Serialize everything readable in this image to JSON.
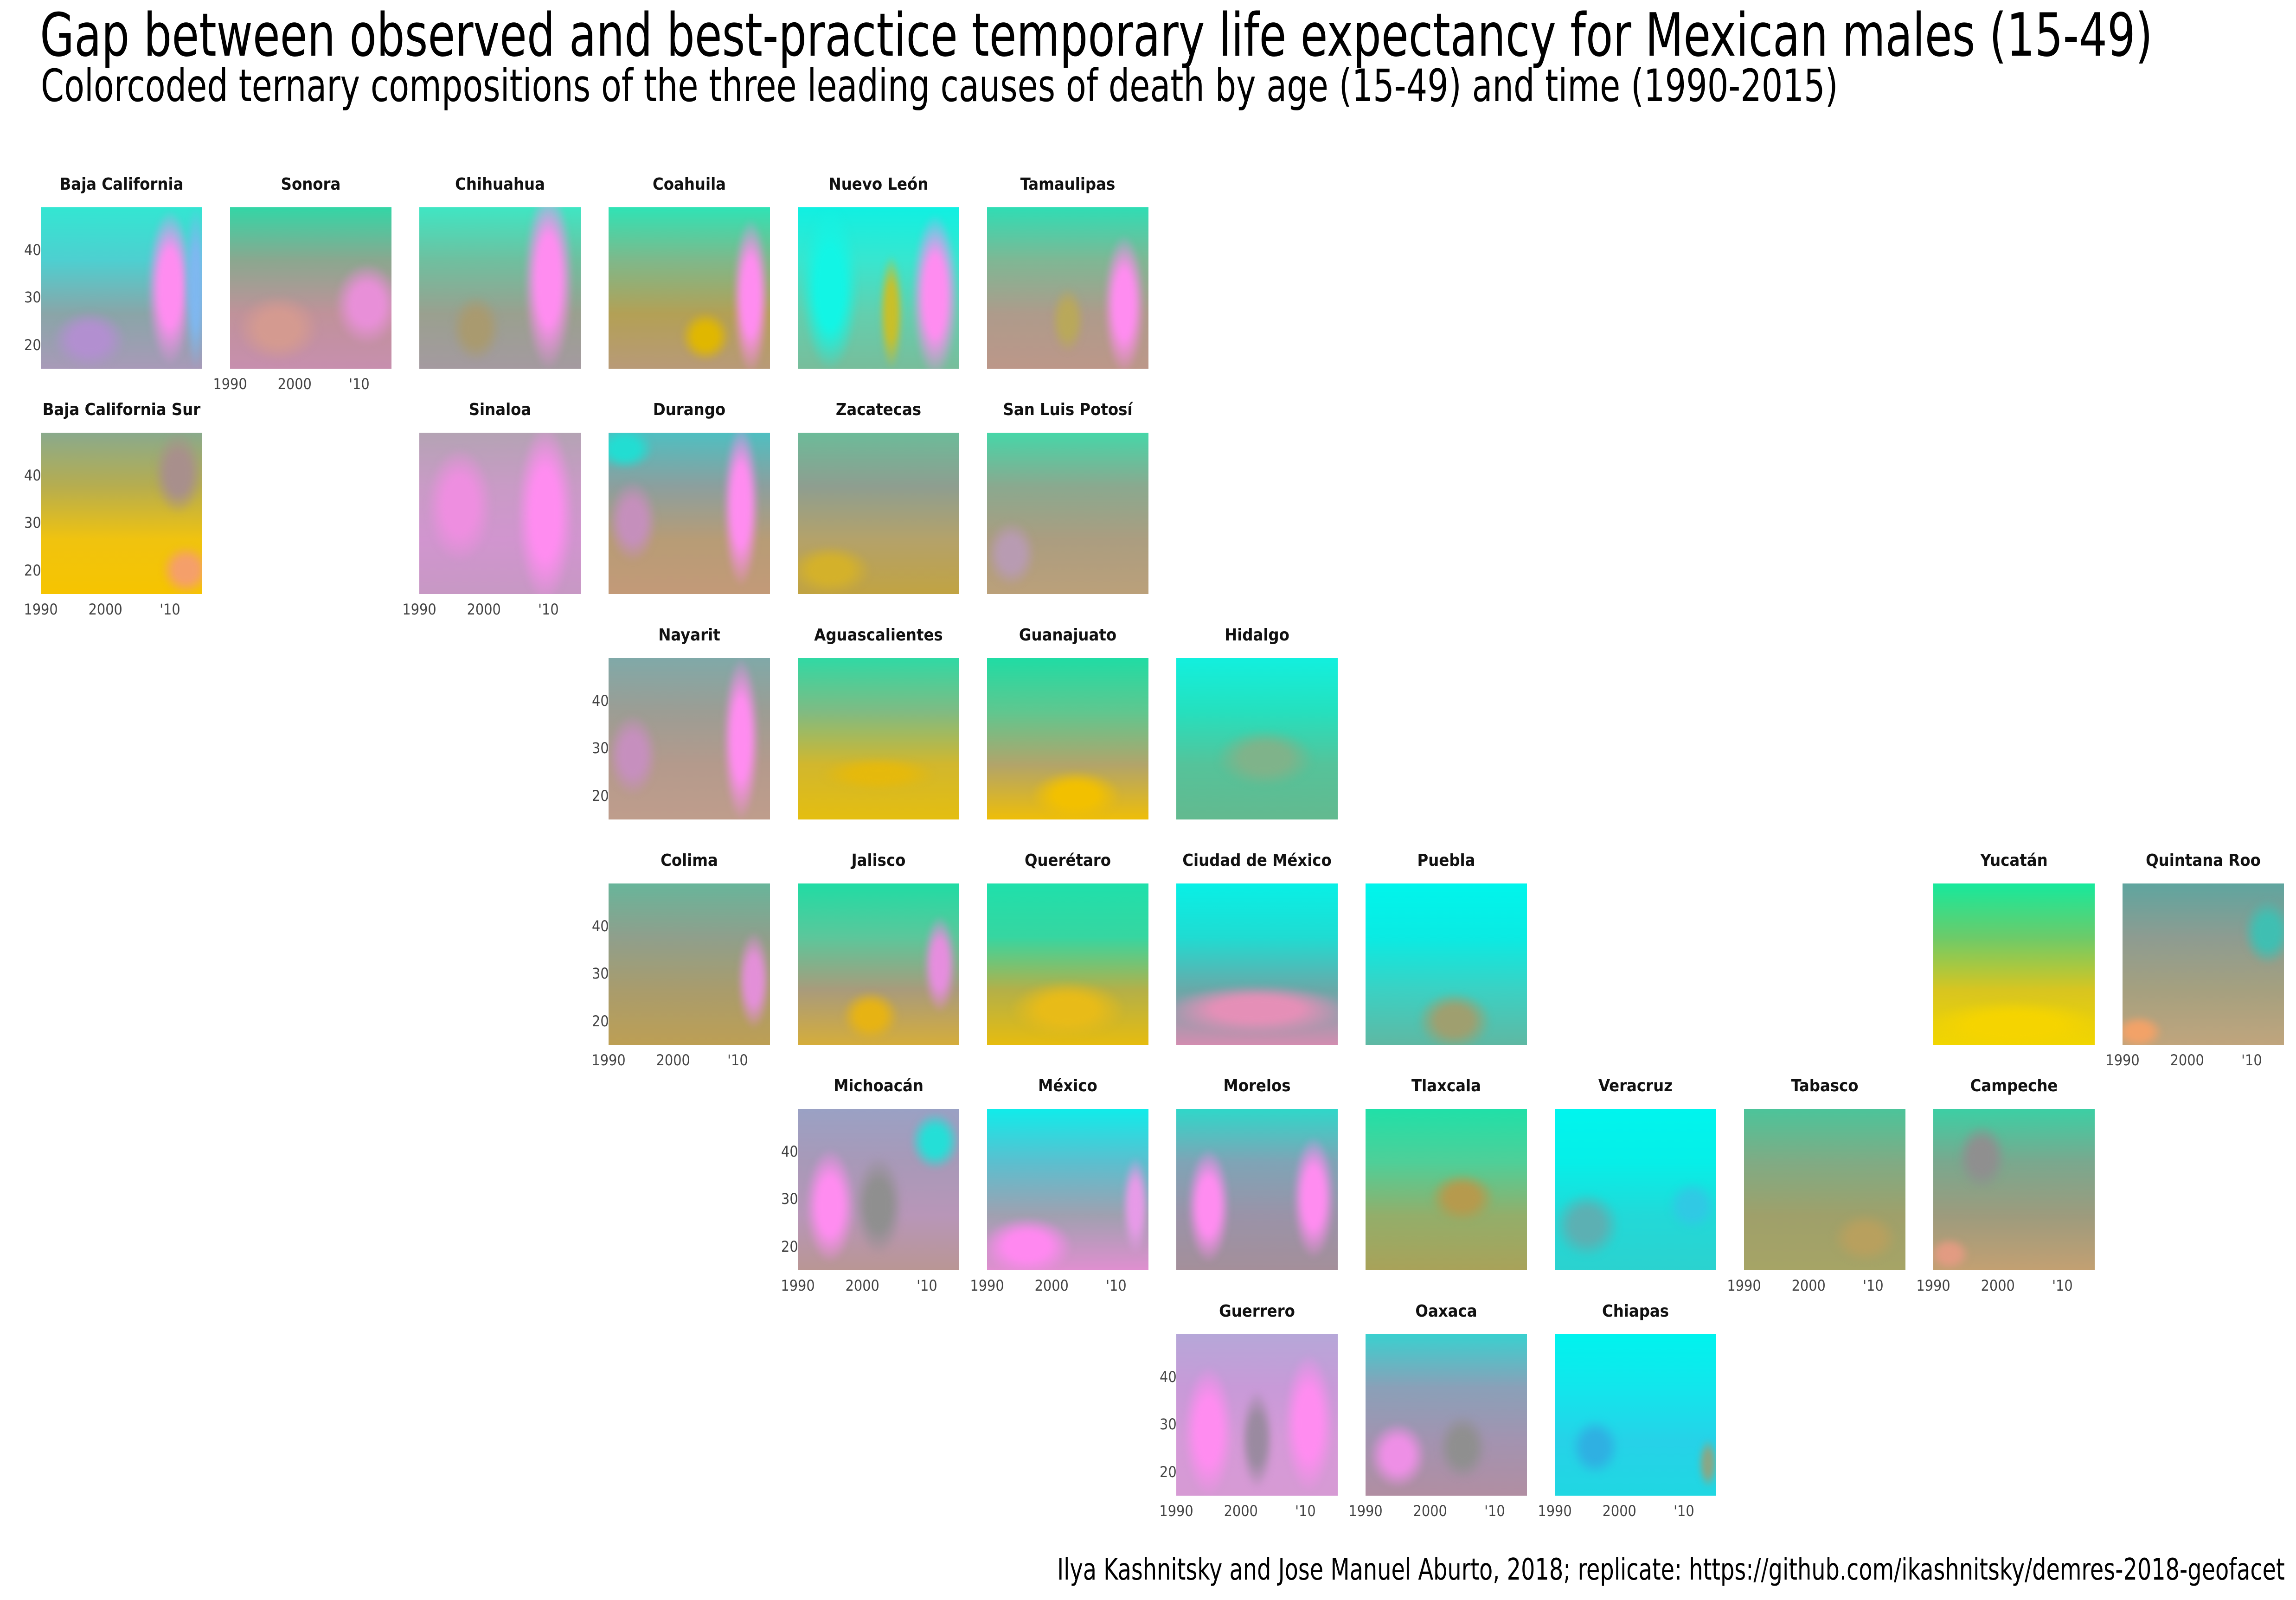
{
  "title": "Gap between observed and best-practice temporary life expectancy for Mexican males (15-49)",
  "subtitle": "Colorcoded ternary compositions of the three leading causes of death by age (15-49) and time (1990-2015)",
  "caption": "Ilya Kashnitsky and Jose Manuel Aburto, 2018; replicate: https://github.com/ikashnitsky/demres-2018-geofacet",
  "colors": {
    "cyan": "#00f5e8",
    "green": "#20d99a",
    "gold": "#f2c200",
    "pink": "#ff8cf0",
    "grey": "#8f8f8f",
    "purple": "#c49af0",
    "peach": "#f5a070"
  },
  "chart_data": {
    "type": "heatmap",
    "x_range": [
      1990,
      2015
    ],
    "y_range": [
      15,
      49
    ],
    "x_ticks": [
      "1990",
      "2000",
      "'10"
    ],
    "y_ticks": [
      "20",
      "30",
      "40"
    ],
    "facets": [
      {
        "name": "Baja California",
        "row": 1,
        "col": 1,
        "ylab": true,
        "xlab": false,
        "colors": [
          "#33e6d2",
          "#4ecfd0",
          "#8aa5a8",
          "#a89ab8"
        ],
        "blobs": [
          {
            "x": 0.8,
            "y": 0.5,
            "w": 0.28,
            "h": 0.95,
            "c": "#ff8cf0"
          },
          {
            "x": 0.3,
            "y": 0.82,
            "w": 0.45,
            "h": 0.35,
            "c": "#b28fd0"
          },
          {
            "x": 0.96,
            "y": 0.5,
            "w": 0.14,
            "h": 1.0,
            "c": "#7fb7f0"
          }
        ]
      },
      {
        "name": "Sonora",
        "row": 1,
        "col": 2,
        "ylab": false,
        "xlab": true,
        "colors": [
          "#33d6a6",
          "#8ba78f",
          "#c0929a",
          "#c78fae"
        ],
        "blobs": [
          {
            "x": 0.85,
            "y": 0.6,
            "w": 0.4,
            "h": 0.5,
            "c": "#e88fd8"
          },
          {
            "x": 0.3,
            "y": 0.75,
            "w": 0.5,
            "h": 0.4,
            "c": "#d49a90"
          }
        ]
      },
      {
        "name": "Chihuahua",
        "row": 1,
        "col": 3,
        "ylab": false,
        "xlab": false,
        "colors": [
          "#3fe6c3",
          "#6fbf9f",
          "#9aa08f",
          "#a49aa0"
        ],
        "blobs": [
          {
            "x": 0.8,
            "y": 0.45,
            "w": 0.3,
            "h": 1.1,
            "c": "#ff8cf0"
          },
          {
            "x": 0.35,
            "y": 0.75,
            "w": 0.3,
            "h": 0.4,
            "c": "#a99a6f"
          }
        ]
      },
      {
        "name": "Coahuila",
        "row": 1,
        "col": 4,
        "ylab": false,
        "xlab": false,
        "colors": [
          "#2fe3b5",
          "#7fb88a",
          "#b3a055",
          "#b89a78"
        ],
        "blobs": [
          {
            "x": 0.88,
            "y": 0.55,
            "w": 0.22,
            "h": 0.95,
            "c": "#ff8cf0"
          },
          {
            "x": 0.6,
            "y": 0.8,
            "w": 0.3,
            "h": 0.3,
            "c": "#e0b700"
          }
        ]
      },
      {
        "name": "Nuevo León",
        "row": 1,
        "col": 5,
        "ylab": false,
        "xlab": false,
        "colors": [
          "#10f0e2",
          "#38e6cf",
          "#63cfae",
          "#78bd9b"
        ],
        "blobs": [
          {
            "x": 0.85,
            "y": 0.55,
            "w": 0.28,
            "h": 1.0,
            "c": "#ff8cf0"
          },
          {
            "x": 0.58,
            "y": 0.65,
            "w": 0.14,
            "h": 0.7,
            "c": "#c9bf28"
          },
          {
            "x": 0.2,
            "y": 0.5,
            "w": 0.35,
            "h": 1.0,
            "c": "#12f5e5"
          }
        ]
      },
      {
        "name": "Tamaulipas",
        "row": 1,
        "col": 6,
        "ylab": false,
        "xlab": false,
        "colors": [
          "#2fddb4",
          "#7fb794",
          "#ae9b8b",
          "#bc9789"
        ],
        "blobs": [
          {
            "x": 0.85,
            "y": 0.6,
            "w": 0.25,
            "h": 0.85,
            "c": "#ff8cf0"
          },
          {
            "x": 0.5,
            "y": 0.7,
            "w": 0.2,
            "h": 0.4,
            "c": "#b9a85a"
          }
        ]
      },
      {
        "name": "Baja California Sur",
        "row": 2,
        "col": 1,
        "ylab": true,
        "xlab": true,
        "colors": [
          "#8aaa8c",
          "#b6ad4f",
          "#f0c30f",
          "#f6c400"
        ],
        "blobs": [
          {
            "x": 0.9,
            "y": 0.85,
            "w": 0.3,
            "h": 0.3,
            "c": "#f59f6a"
          },
          {
            "x": 0.85,
            "y": 0.25,
            "w": 0.3,
            "h": 0.5,
            "c": "#a88f8c"
          }
        ]
      },
      {
        "name": "Sinaloa",
        "row": 2,
        "col": 3,
        "ylab": false,
        "xlab": true,
        "colors": [
          "#b4a3b4",
          "#c99bc6",
          "#d195cf",
          "#c798c4"
        ],
        "blobs": [
          {
            "x": 0.78,
            "y": 0.5,
            "w": 0.35,
            "h": 1.1,
            "c": "#ff8cf0"
          },
          {
            "x": 0.25,
            "y": 0.45,
            "w": 0.4,
            "h": 0.7,
            "c": "#ee8ee0"
          }
        ]
      },
      {
        "name": "Durango",
        "row": 2,
        "col": 4,
        "ylab": false,
        "xlab": false,
        "colors": [
          "#4fbfc1",
          "#8c9f9e",
          "#b79c76",
          "#c39a78"
        ],
        "blobs": [
          {
            "x": 0.82,
            "y": 0.45,
            "w": 0.22,
            "h": 1.0,
            "c": "#ff8cf0"
          },
          {
            "x": 0.15,
            "y": 0.55,
            "w": 0.3,
            "h": 0.5,
            "c": "#c58fbc"
          },
          {
            "x": 0.1,
            "y": 0.1,
            "w": 0.35,
            "h": 0.25,
            "c": "#22ddd2"
          }
        ]
      },
      {
        "name": "Zacatecas",
        "row": 2,
        "col": 5,
        "ylab": false,
        "xlab": false,
        "colors": [
          "#6cbb99",
          "#8e9e90",
          "#b4a26a",
          "#c1a342"
        ],
        "blobs": [
          {
            "x": 0.2,
            "y": 0.85,
            "w": 0.5,
            "h": 0.3,
            "c": "#d4b12a"
          }
        ]
      },
      {
        "name": "San Luis Potosí",
        "row": 2,
        "col": 6,
        "ylab": false,
        "xlab": false,
        "colors": [
          "#46d6a8",
          "#8aa98f",
          "#ab9d80",
          "#bba07a"
        ],
        "blobs": [
          {
            "x": 0.15,
            "y": 0.75,
            "w": 0.3,
            "h": 0.4,
            "c": "#b89bb2"
          }
        ]
      },
      {
        "name": "Nayarit",
        "row": 3,
        "col": 4,
        "ylab": true,
        "xlab": false,
        "colors": [
          "#80a9a8",
          "#9c9d94",
          "#b49a8c",
          "#bf9d8c"
        ],
        "blobs": [
          {
            "x": 0.82,
            "y": 0.5,
            "w": 0.22,
            "h": 1.0,
            "c": "#ff8cf0"
          },
          {
            "x": 0.15,
            "y": 0.6,
            "w": 0.3,
            "h": 0.5,
            "c": "#c68fbe"
          }
        ]
      },
      {
        "name": "Aguascalientes",
        "row": 3,
        "col": 5,
        "ylab": false,
        "xlab": false,
        "colors": [
          "#30d9a4",
          "#7fbb83",
          "#d2b72d",
          "#e4be10"
        ],
        "blobs": [
          {
            "x": 0.5,
            "y": 0.72,
            "w": 0.7,
            "h": 0.2,
            "c": "#e5b90c"
          }
        ]
      },
      {
        "name": "Guanajuato",
        "row": 3,
        "col": 6,
        "ylab": false,
        "xlab": false,
        "colors": [
          "#20dca4",
          "#5fc78f",
          "#b2a46a",
          "#eebe08"
        ],
        "blobs": [
          {
            "x": 0.55,
            "y": 0.85,
            "w": 0.55,
            "h": 0.3,
            "c": "#f2c000"
          }
        ]
      },
      {
        "name": "Hidalgo",
        "row": 3,
        "col": 7,
        "ylab": false,
        "xlab": false,
        "colors": [
          "#12f0de",
          "#25e0be",
          "#55c39a",
          "#63b98f"
        ],
        "blobs": [
          {
            "x": 0.55,
            "y": 0.62,
            "w": 0.6,
            "h": 0.35,
            "c": "#7fb38a"
          }
        ]
      },
      {
        "name": "Colima",
        "row": 4,
        "col": 4,
        "ylab": true,
        "xlab": true,
        "colors": [
          "#68b59a",
          "#8f9f8c",
          "#a99c6c",
          "#bd9f54"
        ],
        "blobs": [
          {
            "x": 0.9,
            "y": 0.6,
            "w": 0.2,
            "h": 0.6,
            "c": "#e38fd8"
          }
        ]
      },
      {
        "name": "Jalisco",
        "row": 4,
        "col": 5,
        "ylab": false,
        "xlab": false,
        "colors": [
          "#20dca4",
          "#5bc79b",
          "#a99b7b",
          "#d5ad3b"
        ],
        "blobs": [
          {
            "x": 0.88,
            "y": 0.5,
            "w": 0.2,
            "h": 0.6,
            "c": "#e68dde"
          },
          {
            "x": 0.45,
            "y": 0.82,
            "w": 0.35,
            "h": 0.3,
            "c": "#e7b313"
          }
        ]
      },
      {
        "name": "Querétaro",
        "row": 4,
        "col": 6,
        "ylab": false,
        "xlab": false,
        "colors": [
          "#1fe0ab",
          "#36d6a1",
          "#b4b048",
          "#e6bc0f"
        ],
        "blobs": [
          {
            "x": 0.5,
            "y": 0.78,
            "w": 0.7,
            "h": 0.35,
            "c": "#e8bb18"
          }
        ]
      },
      {
        "name": "Ciudad de México",
        "row": 4,
        "col": 7,
        "ylab": false,
        "xlab": false,
        "colors": [
          "#08f0e6",
          "#1fdcd2",
          "#6aa8a8",
          "#d28db0"
        ],
        "blobs": [
          {
            "x": 0.5,
            "y": 0.78,
            "w": 1.1,
            "h": 0.3,
            "c": "#e58fb7"
          }
        ]
      },
      {
        "name": "Puebla",
        "row": 4,
        "col": 8,
        "ylab": false,
        "xlab": false,
        "colors": [
          "#00f5ec",
          "#0aebe3",
          "#3bd1c3",
          "#5fb8a3"
        ],
        "blobs": [
          {
            "x": 0.55,
            "y": 0.85,
            "w": 0.45,
            "h": 0.35,
            "c": "#9f9f6f"
          }
        ]
      },
      {
        "name": "Yucatán",
        "row": 4,
        "col": 11,
        "ylab": false,
        "xlab": false,
        "colors": [
          "#16e99c",
          "#6bcb6a",
          "#d8c520",
          "#f2d600"
        ],
        "blobs": [
          {
            "x": 0.5,
            "y": 0.88,
            "w": 1.1,
            "h": 0.3,
            "c": "#f5d400"
          }
        ]
      },
      {
        "name": "Quintana Roo",
        "row": 4,
        "col": 12,
        "ylab": false,
        "xlab": true,
        "colors": [
          "#5fa59f",
          "#8d9c91",
          "#a5a07f",
          "#c0a57d"
        ],
        "blobs": [
          {
            "x": 0.9,
            "y": 0.3,
            "w": 0.3,
            "h": 0.4,
            "c": "#3fbfb2"
          },
          {
            "x": 0.1,
            "y": 0.92,
            "w": 0.3,
            "h": 0.2,
            "c": "#f2a268"
          }
        ]
      },
      {
        "name": "Michoacán",
        "row": 5,
        "col": 5,
        "ylab": true,
        "xlab": true,
        "colors": [
          "#9aa1c4",
          "#a899b8",
          "#b896b8",
          "#b99694"
        ],
        "blobs": [
          {
            "x": 0.2,
            "y": 0.6,
            "w": 0.3,
            "h": 0.7,
            "c": "#ff8cf0"
          },
          {
            "x": 0.5,
            "y": 0.6,
            "w": 0.3,
            "h": 0.6,
            "c": "#8f8f8f"
          },
          {
            "x": 0.85,
            "y": 0.2,
            "w": 0.3,
            "h": 0.35,
            "c": "#24dfd7"
          }
        ]
      },
      {
        "name": "México",
        "row": 5,
        "col": 6,
        "ylab": false,
        "xlab": true,
        "colors": [
          "#10ecea",
          "#5bbfcf",
          "#a0a0b0",
          "#e08fd0"
        ],
        "blobs": [
          {
            "x": 0.25,
            "y": 0.85,
            "w": 0.55,
            "h": 0.35,
            "c": "#ff88f0"
          },
          {
            "x": 0.92,
            "y": 0.6,
            "w": 0.16,
            "h": 0.6,
            "c": "#e79ae8"
          }
        ]
      },
      {
        "name": "Morelos",
        "row": 5,
        "col": 7,
        "ylab": false,
        "xlab": false,
        "colors": [
          "#2fd7c9",
          "#7fa4b6",
          "#9a93a8",
          "#a48f9a"
        ],
        "blobs": [
          {
            "x": 0.2,
            "y": 0.6,
            "w": 0.26,
            "h": 0.7,
            "c": "#ff8cf0"
          },
          {
            "x": 0.85,
            "y": 0.55,
            "w": 0.26,
            "h": 0.75,
            "c": "#ff8cf0"
          }
        ]
      },
      {
        "name": "Tlaxcala",
        "row": 5,
        "col": 8,
        "ylab": false,
        "xlab": false,
        "colors": [
          "#20e0a8",
          "#4fcf98",
          "#93ae6a",
          "#a9a259"
        ],
        "blobs": [
          {
            "x": 0.6,
            "y": 0.55,
            "w": 0.4,
            "h": 0.3,
            "c": "#b69a4d"
          }
        ]
      },
      {
        "name": "Veracruz",
        "row": 5,
        "col": 9,
        "ylab": false,
        "xlab": false,
        "colors": [
          "#00f5ee",
          "#06efe8",
          "#22d9d8",
          "#2bd2cf"
        ],
        "blobs": [
          {
            "x": 0.2,
            "y": 0.72,
            "w": 0.4,
            "h": 0.4,
            "c": "#5cb0b3"
          },
          {
            "x": 0.85,
            "y": 0.6,
            "w": 0.3,
            "h": 0.3,
            "c": "#30c9e4"
          }
        ]
      },
      {
        "name": "Tabasco",
        "row": 5,
        "col": 10,
        "ylab": false,
        "xlab": true,
        "colors": [
          "#4cc49a",
          "#80ab84",
          "#9fa06a",
          "#a6a466"
        ],
        "blobs": [
          {
            "x": 0.75,
            "y": 0.8,
            "w": 0.4,
            "h": 0.3,
            "c": "#b8a05e"
          }
        ]
      },
      {
        "name": "Campeche",
        "row": 5,
        "col": 11,
        "ylab": false,
        "xlab": true,
        "colors": [
          "#3ccfa4",
          "#7aa88e",
          "#9d9b7d",
          "#c3a072"
        ],
        "blobs": [
          {
            "x": 0.3,
            "y": 0.3,
            "w": 0.3,
            "h": 0.4,
            "c": "#8f8f8f"
          },
          {
            "x": 0.1,
            "y": 0.9,
            "w": 0.25,
            "h": 0.2,
            "c": "#e29b82"
          }
        ]
      },
      {
        "name": "Guerrero",
        "row": 6,
        "col": 7,
        "ylab": true,
        "xlab": true,
        "colors": [
          "#b6a7d8",
          "#c89ad8",
          "#d59ad8",
          "#d69ad4"
        ],
        "blobs": [
          {
            "x": 0.2,
            "y": 0.6,
            "w": 0.3,
            "h": 0.8,
            "c": "#ff8cf0"
          },
          {
            "x": 0.82,
            "y": 0.55,
            "w": 0.3,
            "h": 0.85,
            "c": "#ff8cf0"
          },
          {
            "x": 0.5,
            "y": 0.65,
            "w": 0.2,
            "h": 0.6,
            "c": "#9a8aa0"
          }
        ]
      },
      {
        "name": "Oaxaca",
        "row": 6,
        "col": 8,
        "ylab": false,
        "xlab": true,
        "colors": [
          "#3ad0cf",
          "#8aa0b8",
          "#a393b0",
          "#b18ea2"
        ],
        "blobs": [
          {
            "x": 0.2,
            "y": 0.75,
            "w": 0.35,
            "h": 0.4,
            "c": "#ee8fe6"
          },
          {
            "x": 0.6,
            "y": 0.7,
            "w": 0.3,
            "h": 0.4,
            "c": "#8f8f8f"
          }
        ]
      },
      {
        "name": "Chiapas",
        "row": 6,
        "col": 9,
        "ylab": false,
        "xlab": true,
        "colors": [
          "#00f3ee",
          "#12e6ec",
          "#26d2e8",
          "#20d7e2"
        ],
        "blobs": [
          {
            "x": 0.25,
            "y": 0.7,
            "w": 0.3,
            "h": 0.35,
            "c": "#2fb0e2"
          },
          {
            "x": 0.95,
            "y": 0.8,
            "w": 0.12,
            "h": 0.3,
            "c": "#8aa785"
          }
        ]
      }
    ]
  }
}
